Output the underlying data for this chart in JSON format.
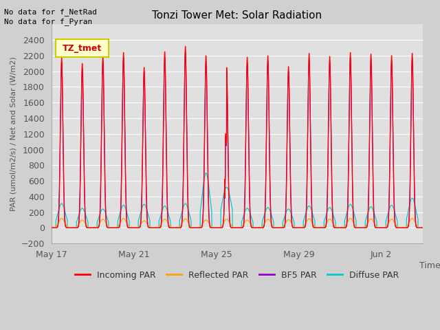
{
  "title": "Tonzi Tower Met: Solar Radiation",
  "ylabel": "PAR (umol/m2/s) / Net and Solar (W/m2)",
  "xlabel": "Time",
  "ylim": [
    -200,
    2600
  ],
  "yticks": [
    -200,
    0,
    200,
    400,
    600,
    800,
    1000,
    1200,
    1400,
    1600,
    1800,
    2000,
    2200,
    2400
  ],
  "no_data_text1": "No data for f_NetRad",
  "no_data_text2": "No data for f_Pyran",
  "badge_text": "TZ_tmet",
  "badge_facecolor": "#ffffcc",
  "badge_edgecolor": "#cccc00",
  "colors": {
    "incoming": "#ff0000",
    "reflected": "#ffa500",
    "bfs": "#9900cc",
    "diffuse": "#00cccc"
  },
  "legend": [
    "Incoming PAR",
    "Reflected PAR",
    "BF5 PAR",
    "Diffuse PAR"
  ],
  "x_tick_labels": [
    "May 17",
    "May 21",
    "May 25",
    "May 29",
    "Jun 2"
  ],
  "x_tick_positions": [
    0,
    4,
    8,
    12,
    16
  ],
  "fig_bg": "#d0d0d0",
  "plot_bg": "#e0e0e0",
  "grid_color": "#ffffff",
  "n_days": 18,
  "points_per_day": 200
}
